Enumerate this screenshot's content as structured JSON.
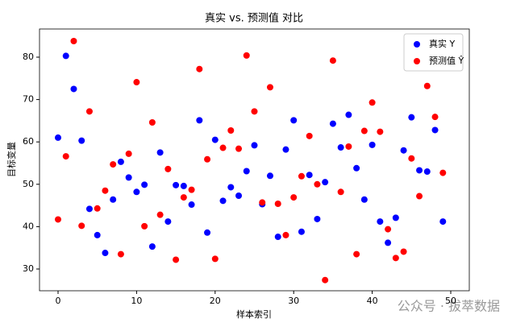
{
  "chart_data": {
    "type": "scatter",
    "title": "真实 vs. 预测值 对比",
    "x_label": "样本索引",
    "y_label": "目标变量",
    "x": [
      0,
      1,
      2,
      3,
      4,
      5,
      6,
      7,
      8,
      9,
      10,
      11,
      12,
      13,
      14,
      15,
      16,
      17,
      18,
      19,
      20,
      21,
      22,
      23,
      24,
      25,
      26,
      27,
      28,
      29,
      30,
      31,
      32,
      33,
      34,
      35,
      36,
      37,
      38,
      39,
      40,
      41,
      42,
      43,
      44,
      45,
      46,
      47,
      48,
      49
    ],
    "series": [
      {
        "name": "真实 Y",
        "color": "#0000ff",
        "values": [
          61,
          80.3,
          72.5,
          60.3,
          44.2,
          38,
          33.8,
          46.4,
          55.3,
          51.6,
          48.2,
          49.9,
          35.3,
          57.5,
          41.2,
          49.8,
          49.6,
          45.2,
          65.1,
          38.6,
          60.5,
          46.1,
          49.3,
          47.3,
          53.1,
          59.2,
          45.3,
          52,
          37.6,
          58.2,
          65.1,
          38.8,
          52.2,
          41.8,
          50.5,
          64.3,
          58.7,
          66.4,
          53.8,
          46.4,
          59.3,
          41.2,
          36.2,
          42.1,
          58,
          65.8,
          53.3,
          53,
          62.8,
          41.2
        ]
      },
      {
        "name": "预测值 Ŷ",
        "color": "#ff0000",
        "values": [
          41.7,
          56.6,
          83.8,
          40.2,
          67.2,
          44.3,
          48.5,
          54.7,
          33.5,
          57.2,
          74.1,
          40.1,
          64.6,
          42.8,
          53.6,
          32.2,
          46.9,
          48.7,
          77.2,
          55.9,
          32.4,
          58.6,
          62.7,
          58.4,
          80.4,
          67.2,
          45.7,
          72.9,
          45.4,
          38,
          46.9,
          51.9,
          61.4,
          50,
          27.4,
          79.2,
          48.2,
          58.9,
          33.5,
          62.6,
          69.3,
          62.4,
          39.4,
          32.6,
          34.1,
          56.1,
          47.2,
          73.2,
          65.9,
          52.7
        ]
      }
    ],
    "xlim": [
      -2.36,
      52.36
    ],
    "xticks": [
      0,
      10,
      20,
      30,
      40,
      50
    ],
    "ylim": [
      24.87,
      86.65
    ],
    "yticks": [
      30,
      40,
      50,
      60,
      70,
      80
    ],
    "grid": false,
    "legend": "upper right"
  },
  "watermark": "公众号 · 拔萃数据"
}
